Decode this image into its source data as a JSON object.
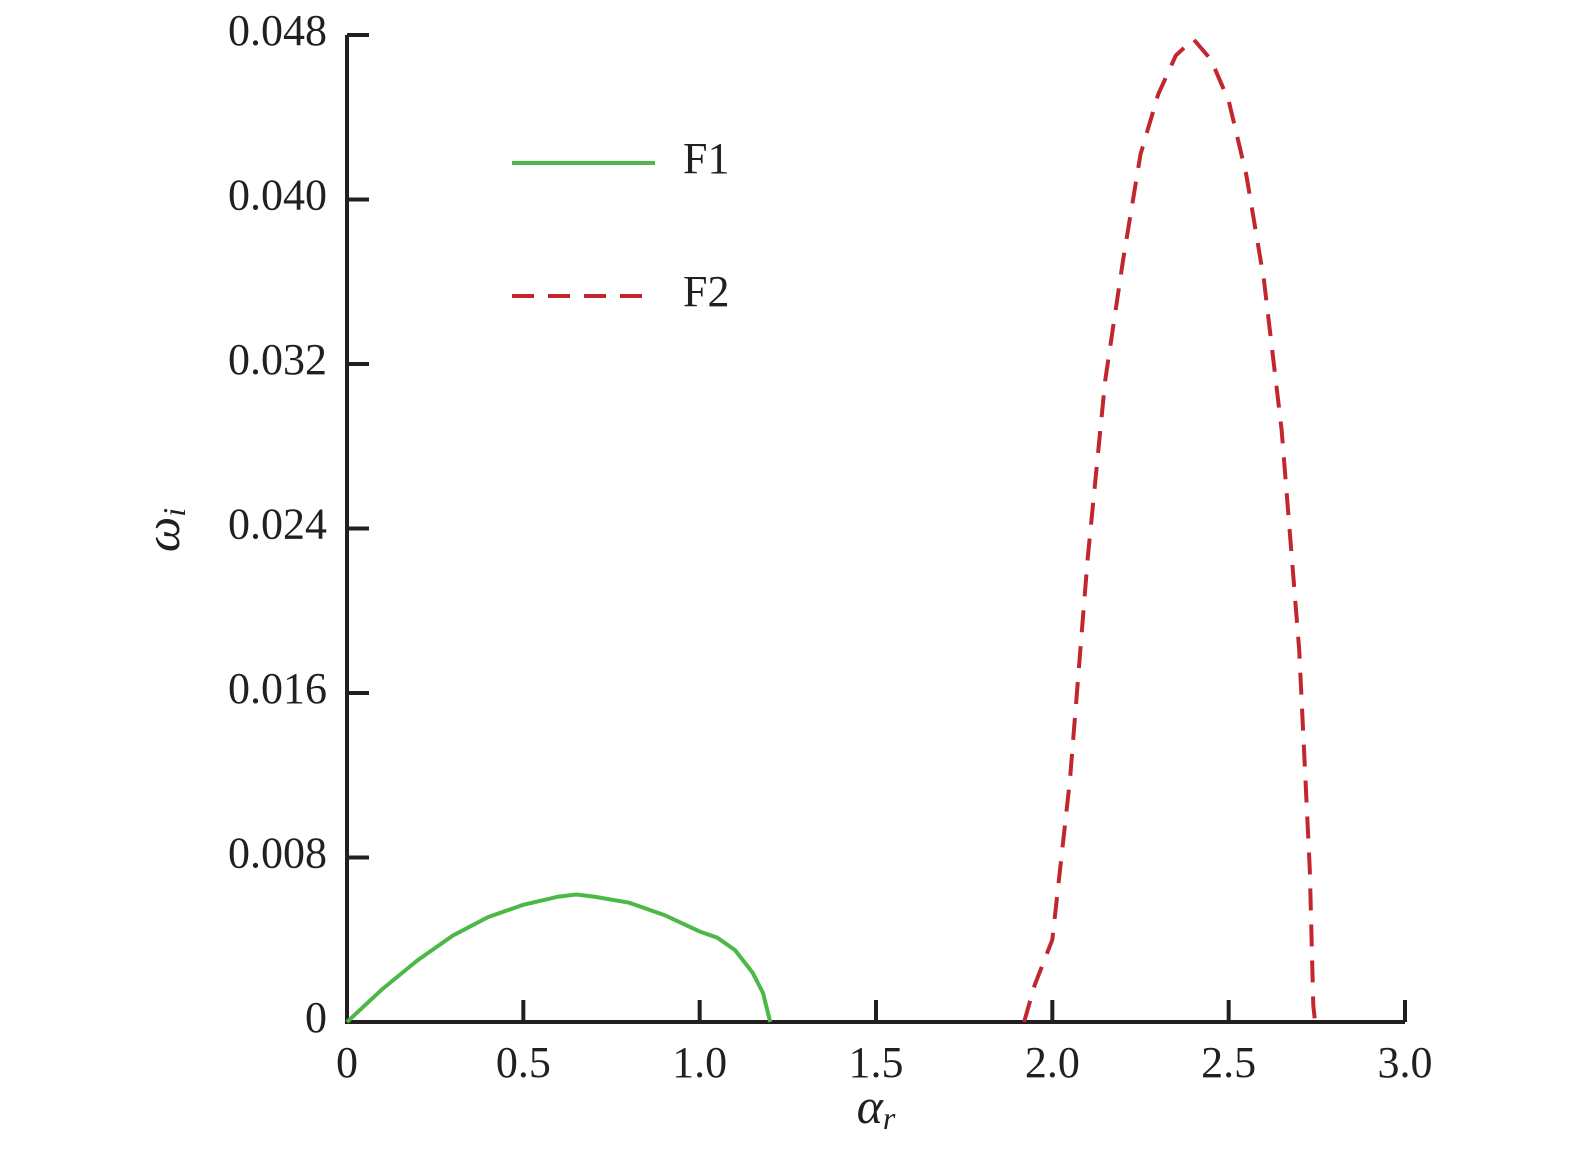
{
  "chart_data": {
    "type": "line",
    "xlabel": {
      "text": "α",
      "sub": "r"
    },
    "ylabel": {
      "text": "ω",
      "sub": "i"
    },
    "xlim": [
      0,
      3
    ],
    "ylim": [
      0,
      0.048
    ],
    "xticks": [
      0,
      0.5,
      {
        "value": 1,
        "label": "1.0"
      },
      1.5,
      {
        "value": 2,
        "label": "2.0"
      },
      2.5,
      {
        "value": 3,
        "label": "3.0"
      }
    ],
    "yticks": [
      0,
      0.008,
      0.016,
      0.024,
      0.032,
      {
        "value": 0.04,
        "label": "0.040"
      },
      0.048
    ],
    "legend": "upper left",
    "series": [
      {
        "name": "F1",
        "color": "#4db848",
        "dash": "solid",
        "x": [
          0,
          0.1,
          0.2,
          0.3,
          0.4,
          0.5,
          0.6,
          0.65,
          0.7,
          0.8,
          0.9,
          1.0,
          1.05,
          1.1,
          1.15,
          1.18,
          1.2
        ],
        "values": [
          0,
          0.0016,
          0.003,
          0.0042,
          0.0051,
          0.0057,
          0.0061,
          0.0062,
          0.0061,
          0.0058,
          0.0052,
          0.0044,
          0.0041,
          0.0035,
          0.0024,
          0.0014,
          0
        ]
      },
      {
        "name": "F2",
        "color": "#c1272d",
        "dash": "dashed",
        "x": [
          1.92,
          1.95,
          2.0,
          2.05,
          2.1,
          2.15,
          2.2,
          2.25,
          2.3,
          2.35,
          2.4,
          2.45,
          2.5,
          2.55,
          2.6,
          2.65,
          2.7,
          2.73,
          2.74,
          2.745
        ],
        "values": [
          0,
          0.0018,
          0.004,
          0.0118,
          0.0225,
          0.0312,
          0.037,
          0.0422,
          0.0451,
          0.047,
          0.0478,
          0.0468,
          0.0448,
          0.0412,
          0.0361,
          0.0288,
          0.0181,
          0.0074,
          0.0008,
          0
        ]
      }
    ]
  }
}
